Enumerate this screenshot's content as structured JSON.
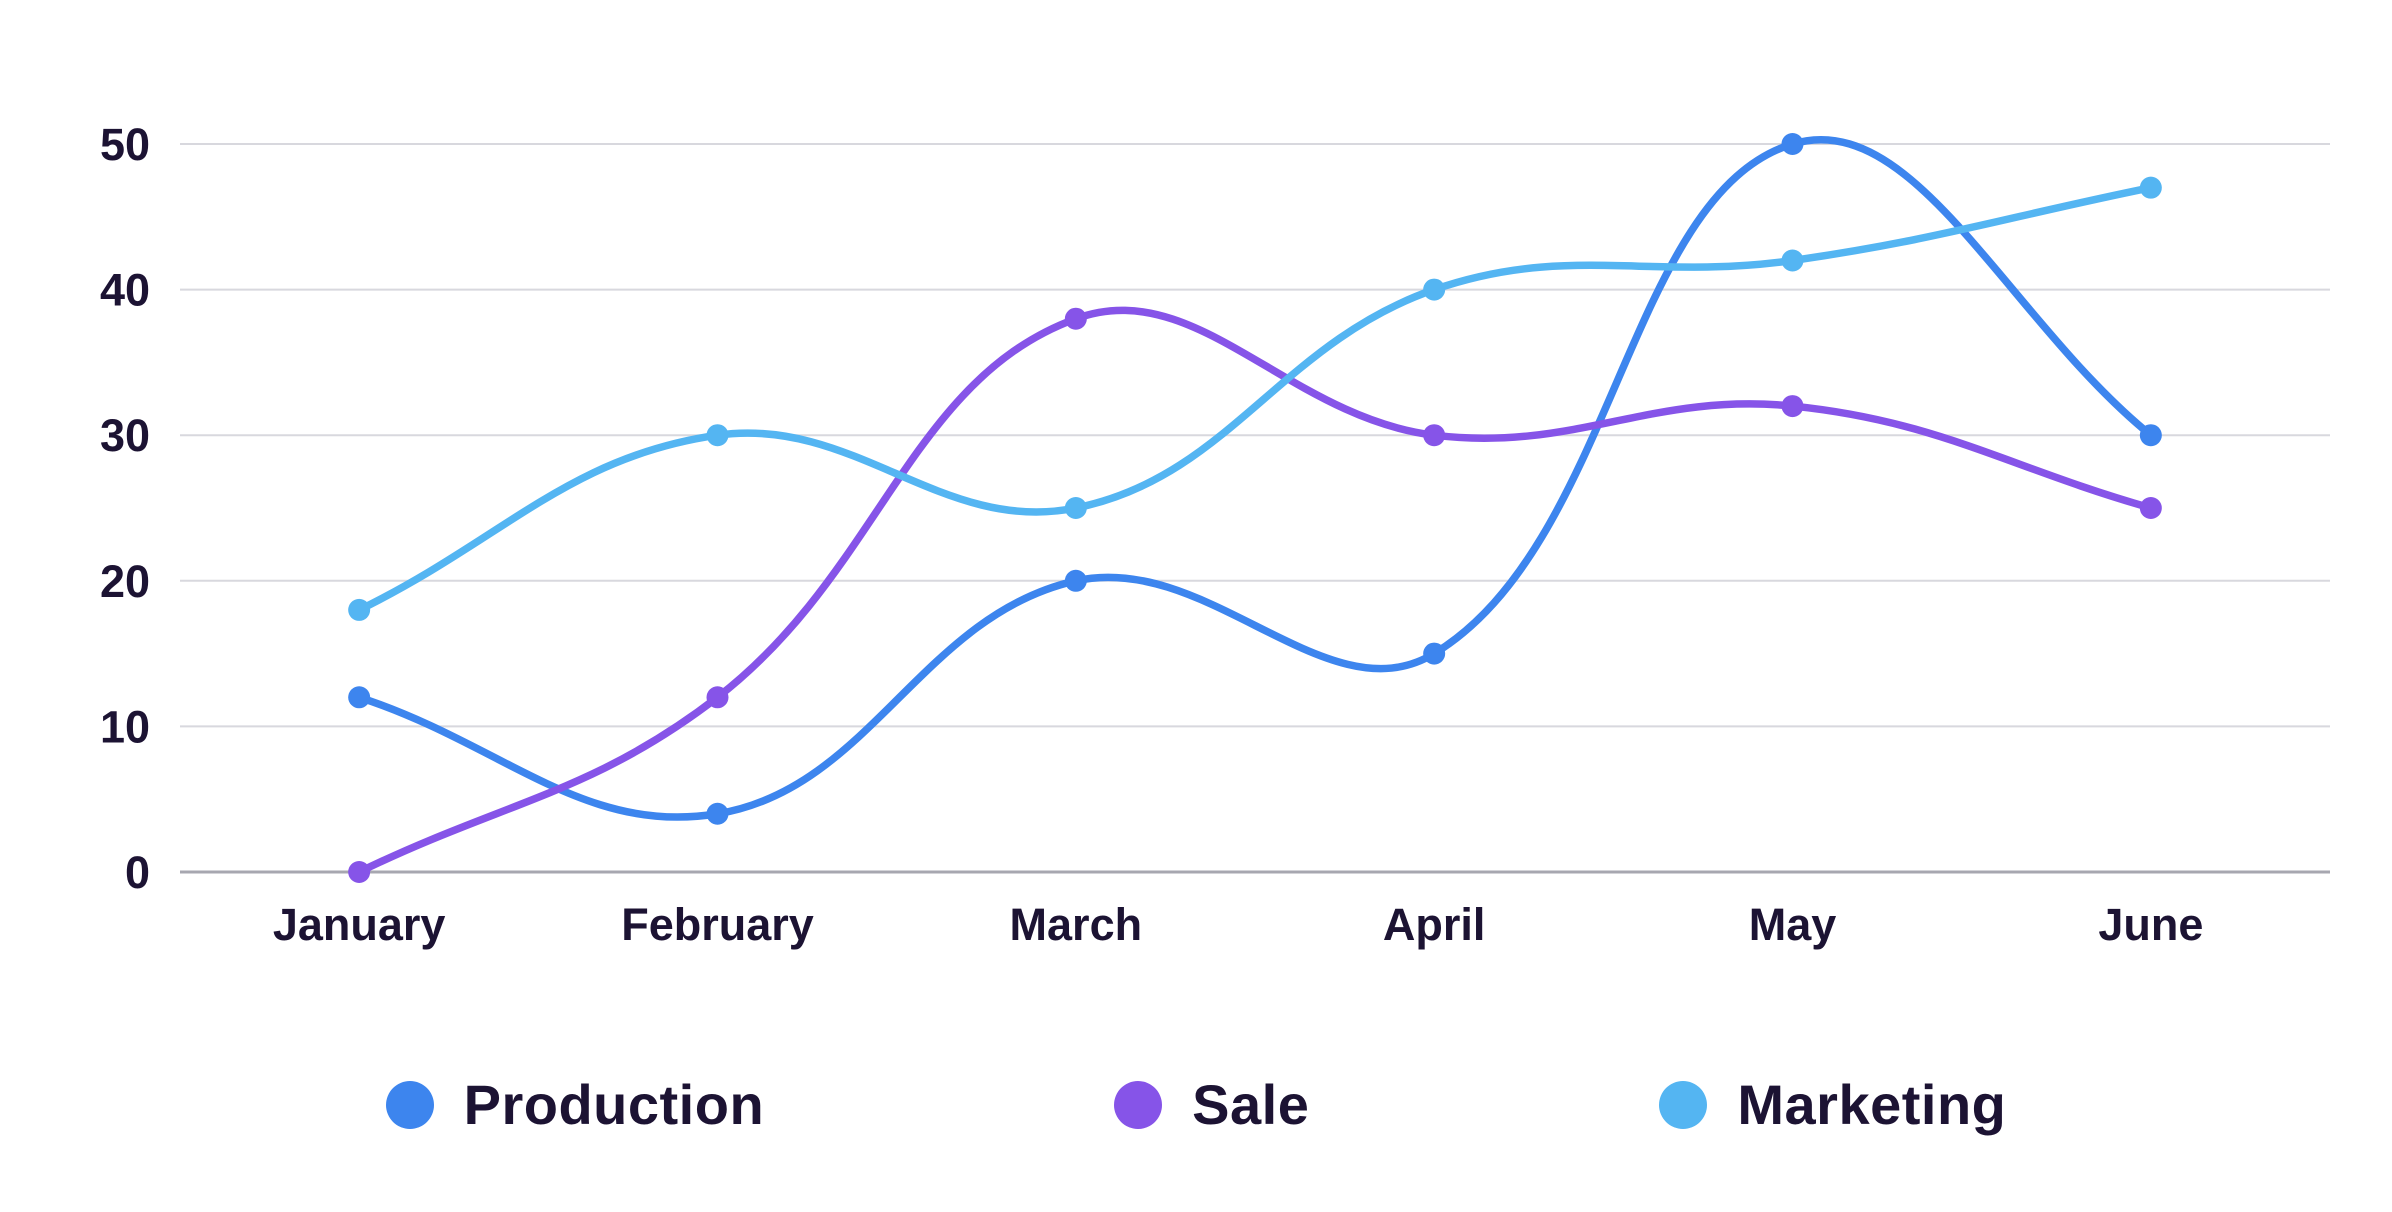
{
  "chart_data": {
    "type": "line",
    "categories": [
      "January",
      "February",
      "March",
      "April",
      "May",
      "June"
    ],
    "series": [
      {
        "name": "Production",
        "color": "#3D85EE",
        "values": [
          12,
          4,
          20,
          15,
          50,
          30
        ]
      },
      {
        "name": "Sale",
        "color": "#8654E8",
        "values": [
          0,
          12,
          38,
          30,
          32,
          25
        ]
      },
      {
        "name": "Marketing",
        "color": "#54B5F2",
        "values": [
          18,
          30,
          25,
          40,
          42,
          47
        ]
      }
    ],
    "title": "",
    "xlabel": "",
    "ylabel": "",
    "ylim": [
      0,
      50
    ],
    "yticks": [
      0,
      10,
      20,
      30,
      40,
      50
    ],
    "grid": true,
    "legend_position": "bottom",
    "curve": "smooth",
    "styles": {
      "text_color": "#1C1333",
      "gridline_color": "#D8D8DE",
      "axis_line_color": "#A7A7B0",
      "background": "#FFFFFF"
    }
  }
}
